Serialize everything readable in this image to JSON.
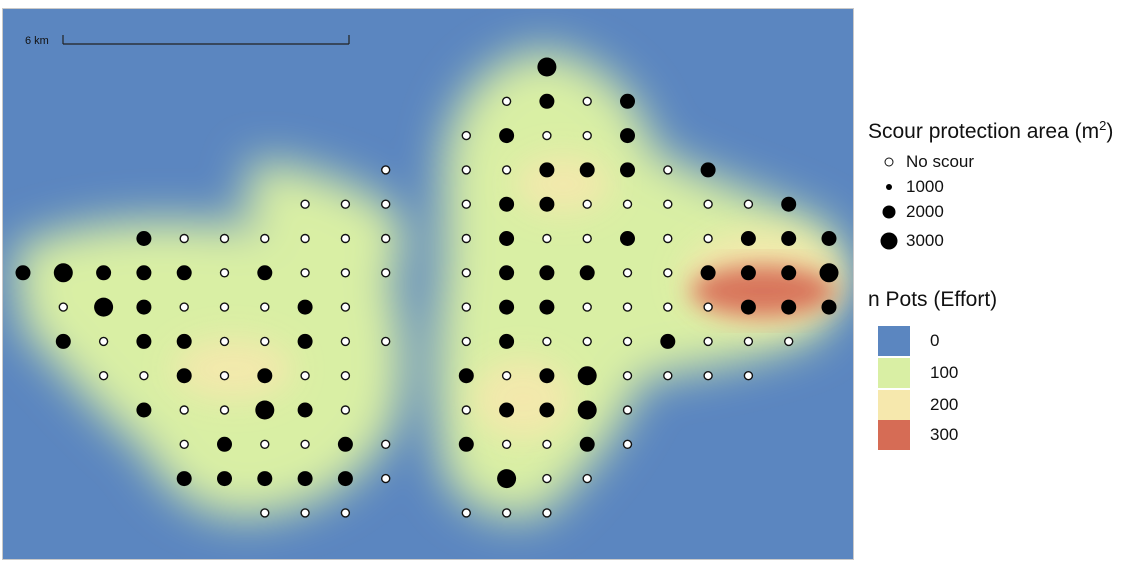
{
  "map": {
    "scale_bar_label": "6 km",
    "background_color": "#5b86c0",
    "heat_colors": {
      "low": "#d9efa4",
      "mid": "#f6e8ad",
      "high": "#d66c55"
    }
  },
  "legend": {
    "scour_title": "Scour protection area (m",
    "scour_title_sup": "2",
    "scour_title_end": ")",
    "scour_items": [
      {
        "label": "No scour",
        "symbol": "open-circle"
      },
      {
        "label": "1000",
        "symbol": "dot-small"
      },
      {
        "label": "2000",
        "symbol": "dot-medium"
      },
      {
        "label": "3000",
        "symbol": "dot-large"
      }
    ],
    "effort_title": "n Pots (Effort)",
    "effort_items": [
      {
        "label": "0",
        "color": "#5b86c0"
      },
      {
        "label": "100",
        "color": "#d9efa4"
      },
      {
        "label": "200",
        "color": "#f6e8ad"
      },
      {
        "label": "300",
        "color": "#d66c55"
      }
    ]
  },
  "turbine_rows": [
    {
      "row": 1,
      "cells": [
        0,
        0,
        0,
        0,
        0,
        0,
        0,
        0,
        0,
        0,
        0,
        0,
        0,
        3,
        0,
        0,
        0,
        0,
        0,
        0,
        0
      ]
    },
    {
      "row": 2,
      "cells": [
        0,
        0,
        0,
        0,
        0,
        0,
        0,
        0,
        0,
        0,
        0,
        0,
        1,
        2,
        1,
        2,
        0,
        0,
        0,
        0,
        0
      ]
    },
    {
      "row": 3,
      "cells": [
        0,
        0,
        0,
        0,
        0,
        0,
        0,
        0,
        0,
        0,
        0,
        1,
        2,
        1,
        1,
        2,
        0,
        0,
        0,
        0,
        0
      ]
    },
    {
      "row": 4,
      "cells": [
        0,
        0,
        0,
        0,
        0,
        0,
        0,
        0,
        0,
        1,
        0,
        1,
        1,
        2,
        2,
        2,
        1,
        2,
        0,
        0,
        0
      ]
    },
    {
      "row": 5,
      "cells": [
        0,
        0,
        0,
        0,
        0,
        0,
        0,
        1,
        1,
        1,
        0,
        1,
        2,
        2,
        1,
        1,
        1,
        1,
        1,
        2,
        0
      ]
    },
    {
      "row": 6,
      "cells": [
        0,
        0,
        0,
        2,
        1,
        1,
        1,
        1,
        1,
        1,
        0,
        1,
        2,
        1,
        1,
        2,
        1,
        1,
        2,
        2,
        2
      ]
    },
    {
      "row": 7,
      "cells": [
        2,
        3,
        2,
        2,
        2,
        1,
        2,
        1,
        1,
        1,
        0,
        1,
        2,
        2,
        2,
        1,
        1,
        2,
        2,
        2,
        3
      ]
    },
    {
      "row": 8,
      "cells": [
        0,
        1,
        3,
        2,
        1,
        1,
        1,
        2,
        1,
        0,
        0,
        1,
        2,
        2,
        1,
        1,
        1,
        1,
        2,
        2,
        2
      ]
    },
    {
      "row": 9,
      "cells": [
        0,
        2,
        1,
        2,
        2,
        1,
        1,
        2,
        1,
        1,
        0,
        1,
        2,
        1,
        1,
        1,
        2,
        1,
        1,
        1,
        0
      ]
    },
    {
      "row": 10,
      "cells": [
        0,
        0,
        1,
        1,
        2,
        1,
        2,
        1,
        1,
        0,
        0,
        2,
        1,
        2,
        3,
        1,
        1,
        1,
        1,
        0,
        0
      ]
    },
    {
      "row": 11,
      "cells": [
        0,
        0,
        0,
        2,
        1,
        1,
        3,
        2,
        1,
        0,
        0,
        1,
        2,
        2,
        3,
        1,
        0,
        0,
        0,
        0,
        0
      ]
    },
    {
      "row": 12,
      "cells": [
        0,
        0,
        0,
        0,
        1,
        2,
        1,
        1,
        2,
        1,
        0,
        2,
        1,
        1,
        2,
        1,
        0,
        0,
        0,
        0,
        0
      ]
    },
    {
      "row": 13,
      "cells": [
        0,
        0,
        0,
        0,
        2,
        2,
        2,
        2,
        2,
        1,
        0,
        0,
        3,
        1,
        1,
        0,
        0,
        0,
        0,
        0,
        0
      ]
    },
    {
      "row": 14,
      "cells": [
        0,
        0,
        0,
        0,
        0,
        0,
        1,
        1,
        1,
        0,
        0,
        1,
        1,
        1,
        0,
        0,
        0,
        0,
        0,
        0,
        0
      ]
    }
  ]
}
